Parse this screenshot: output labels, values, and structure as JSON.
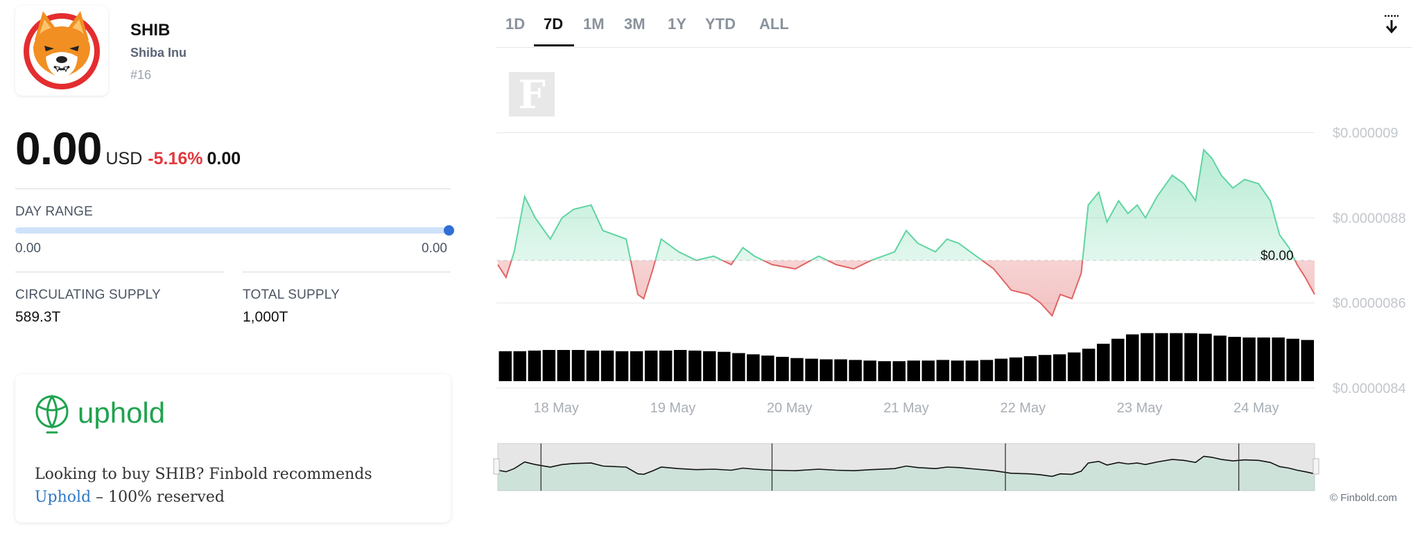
{
  "coin": {
    "symbol": "SHIB",
    "name": "Shiba Inu",
    "rank": "#16",
    "price": "0.00",
    "currency": "USD",
    "change_pct": "-5.16%",
    "change_abs": "0.00"
  },
  "day_range": {
    "label": "DAY RANGE",
    "low": "0.00",
    "high": "0.00",
    "position": 1.0
  },
  "supply": {
    "circulating_label": "CIRCULATING SUPPLY",
    "circulating_value": "589.3T",
    "total_label": "TOTAL SUPPLY",
    "total_value": "1,000T"
  },
  "promo": {
    "brand": "uphold",
    "text_before": "Looking to buy SHIB? Finbold recommends",
    "link_text": "Uphold",
    "text_after": " – 100% reserved"
  },
  "timeframes": {
    "tabs": [
      "1D",
      "7D",
      "1M",
      "3M",
      "1Y",
      "YTD",
      "ALL"
    ],
    "active": "7D"
  },
  "icons": {
    "download": "download-icon",
    "watermark": "finbold-f-logo",
    "coin_logo": "shiba-inu-logo",
    "promo_logo": "uphold-logo"
  },
  "colors": {
    "up": "#5fd4a0",
    "down": "#e06464",
    "negative_text": "#e2383d",
    "accent": "#2f6fd6",
    "uphold_green": "#1fa34e"
  },
  "credit": "© Finbold.com",
  "chart_data": {
    "type": "area",
    "baseline": 8.7e-06,
    "current_label": "$0.00",
    "y_ticks": [
      {
        "value": 9e-06,
        "label": "$0.000009"
      },
      {
        "value": 8.8e-06,
        "label": "$0.0000088"
      },
      {
        "value": 8.6e-06,
        "label": "$0.0000086"
      },
      {
        "value": 8.4e-06,
        "label": "$0.0000084"
      }
    ],
    "ylim": [
      8.4e-06,
      9.1e-06
    ],
    "x_ticks": [
      "18 May",
      "19 May",
      "20 May",
      "21 May",
      "22 May",
      "23 May",
      "24 May"
    ],
    "x_tick_pos": [
      0.5,
      1.5,
      2.5,
      3.5,
      4.5,
      5.5,
      6.5
    ],
    "xlim": [
      0,
      7
    ],
    "price": [
      [
        0.0,
        8.69e-06
      ],
      [
        0.07,
        8.66e-06
      ],
      [
        0.14,
        8.72e-06
      ],
      [
        0.23,
        8.85e-06
      ],
      [
        0.32,
        8.8e-06
      ],
      [
        0.45,
        8.75e-06
      ],
      [
        0.55,
        8.8e-06
      ],
      [
        0.65,
        8.82e-06
      ],
      [
        0.8,
        8.83e-06
      ],
      [
        0.9,
        8.77e-06
      ],
      [
        1.1,
        8.75e-06
      ],
      [
        1.2,
        8.62e-06
      ],
      [
        1.25,
        8.61e-06
      ],
      [
        1.33,
        8.68e-06
      ],
      [
        1.4,
        8.75e-06
      ],
      [
        1.55,
        8.72e-06
      ],
      [
        1.7,
        8.7e-06
      ],
      [
        1.85,
        8.71e-06
      ],
      [
        2.0,
        8.69e-06
      ],
      [
        2.1,
        8.73e-06
      ],
      [
        2.2,
        8.71e-06
      ],
      [
        2.35,
        8.69e-06
      ],
      [
        2.55,
        8.68e-06
      ],
      [
        2.75,
        8.71e-06
      ],
      [
        2.9,
        8.69e-06
      ],
      [
        3.05,
        8.68e-06
      ],
      [
        3.2,
        8.7e-06
      ],
      [
        3.4,
        8.72e-06
      ],
      [
        3.5,
        8.77e-06
      ],
      [
        3.6,
        8.74e-06
      ],
      [
        3.75,
        8.72e-06
      ],
      [
        3.85,
        8.75e-06
      ],
      [
        3.95,
        8.74e-06
      ],
      [
        4.1,
        8.71e-06
      ],
      [
        4.25,
        8.68e-06
      ],
      [
        4.4,
        8.63e-06
      ],
      [
        4.55,
        8.62e-06
      ],
      [
        4.65,
        8.6e-06
      ],
      [
        4.75,
        8.57e-06
      ],
      [
        4.82,
        8.62e-06
      ],
      [
        4.92,
        8.61e-06
      ],
      [
        5.0,
        8.67e-06
      ],
      [
        5.06,
        8.83e-06
      ],
      [
        5.15,
        8.86e-06
      ],
      [
        5.22,
        8.79e-06
      ],
      [
        5.32,
        8.84e-06
      ],
      [
        5.4,
        8.81e-06
      ],
      [
        5.48,
        8.83e-06
      ],
      [
        5.55,
        8.8e-06
      ],
      [
        5.65,
        8.85e-06
      ],
      [
        5.78,
        8.9e-06
      ],
      [
        5.88,
        8.88e-06
      ],
      [
        5.98,
        8.84e-06
      ],
      [
        6.05,
        8.96e-06
      ],
      [
        6.12,
        8.94e-06
      ],
      [
        6.2,
        8.9e-06
      ],
      [
        6.3,
        8.87e-06
      ],
      [
        6.4,
        8.89e-06
      ],
      [
        6.52,
        8.88e-06
      ],
      [
        6.62,
        8.84e-06
      ],
      [
        6.7,
        8.76e-06
      ],
      [
        6.78,
        8.73e-06
      ],
      [
        6.85,
        8.69e-06
      ],
      [
        6.92,
        8.66e-06
      ],
      [
        7.0,
        8.62e-06
      ]
    ],
    "volume": [
      0.48,
      0.48,
      0.49,
      0.5,
      0.5,
      0.5,
      0.49,
      0.49,
      0.48,
      0.48,
      0.49,
      0.49,
      0.5,
      0.49,
      0.48,
      0.47,
      0.45,
      0.43,
      0.41,
      0.39,
      0.37,
      0.36,
      0.35,
      0.35,
      0.34,
      0.33,
      0.32,
      0.32,
      0.33,
      0.33,
      0.34,
      0.33,
      0.33,
      0.34,
      0.36,
      0.38,
      0.4,
      0.42,
      0.43,
      0.46,
      0.52,
      0.6,
      0.68,
      0.75,
      0.77,
      0.77,
      0.77,
      0.77,
      0.76,
      0.73,
      0.71,
      0.7,
      0.7,
      0.7,
      0.68,
      0.66
    ],
    "navigator": {
      "window_start": 0,
      "window_end": 7
    }
  }
}
